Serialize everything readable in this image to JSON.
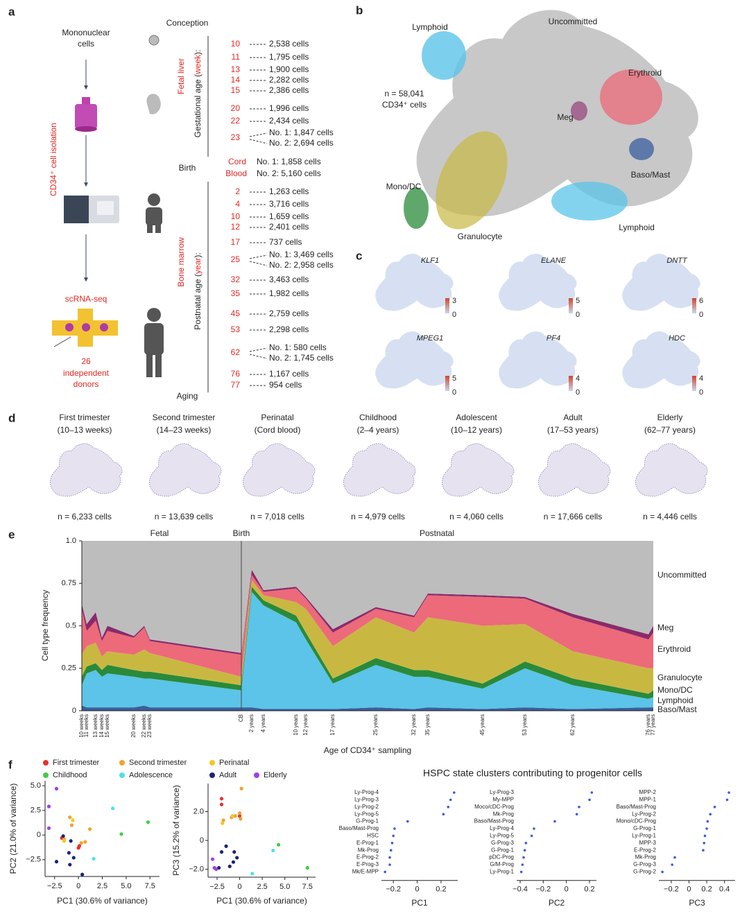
{
  "panel_labels": [
    "a",
    "b",
    "c",
    "d",
    "e",
    "f"
  ],
  "panel_a": {
    "input": [
      "Mononuclear",
      "cells"
    ],
    "isolation": "CD34⁺ cell isolation",
    "method": "scRNA-seq",
    "donors": [
      "26",
      "independent",
      "donors"
    ],
    "timeline": [
      "Conception",
      "Birth",
      "Aging"
    ],
    "fetal": {
      "tissue": "Fetal liver",
      "axis": [
        "Gestational age (",
        "week",
        "):"
      ],
      "rows": [
        {
          "age": "10",
          "cells": [
            "2,538 cells"
          ]
        },
        {
          "age": "11",
          "cells": [
            "1,795 cells"
          ]
        },
        {
          "age": "13",
          "cells": [
            "1,900 cells"
          ]
        },
        {
          "age": "14",
          "cells": [
            "2,282 cells"
          ]
        },
        {
          "age": "15",
          "cells": [
            "2,386 cells"
          ]
        },
        {
          "age": "20",
          "cells": [
            "1,996 cells"
          ]
        },
        {
          "age": "22",
          "cells": [
            "2,434 cells"
          ]
        },
        {
          "age": "23",
          "cells": [
            "No. 1: 1,847 cells",
            "No. 2: 2,694 cells"
          ]
        }
      ]
    },
    "cord": {
      "tissue": [
        "Cord",
        "Blood"
      ],
      "cells": [
        "No. 1: 1,858 cells",
        "No. 2: 5,160 cells"
      ]
    },
    "postnatal": {
      "tissue": "Bone marrow",
      "axis": [
        "Postnatal age (",
        "year",
        "):"
      ],
      "rows": [
        {
          "age": "2",
          "cells": [
            "1,263 cells"
          ]
        },
        {
          "age": "4",
          "cells": [
            "3,716 cells"
          ]
        },
        {
          "age": "10",
          "cells": [
            "1,659 cells"
          ]
        },
        {
          "age": "12",
          "cells": [
            "2,401 cells"
          ]
        },
        {
          "age": "17",
          "cells": [
            "737 cells"
          ]
        },
        {
          "age": "25",
          "cells": [
            "No. 1: 3,469 cells",
            "No. 2: 2,958 cells"
          ]
        },
        {
          "age": "32",
          "cells": [
            "3,463 cells"
          ]
        },
        {
          "age": "35",
          "cells": [
            "1,982 cells"
          ]
        },
        {
          "age": "45",
          "cells": [
            "2,759 cells"
          ]
        },
        {
          "age": "53",
          "cells": [
            "2,298 cells"
          ]
        },
        {
          "age": "62",
          "cells": [
            "No. 1: 580 cells",
            "No. 2: 1,745 cells"
          ]
        },
        {
          "age": "76",
          "cells": [
            "1,167 cells"
          ]
        },
        {
          "age": "77",
          "cells": [
            "954 cells"
          ]
        }
      ]
    }
  },
  "panel_b": {
    "count": [
      "n = 58,041",
      "CD34⁺ cells"
    ],
    "labels": [
      {
        "text": "Lymphoid",
        "color": "#2fb2e0"
      },
      {
        "text": "Uncommitted",
        "color": "#888888"
      },
      {
        "text": "Erythroid",
        "color": "#e0506a"
      },
      {
        "text": "Meg",
        "color": "#a0307a"
      },
      {
        "text": "Baso/Mast",
        "color": "#3a5fa0"
      },
      {
        "text": "Lymphoid",
        "color": "#2fb2e0"
      },
      {
        "text": "Granulocyte",
        "color": "#b0a020"
      },
      {
        "text": "Mono/DC",
        "color": "#2a8a3a"
      }
    ]
  },
  "panel_c": {
    "genes": [
      {
        "name": "KLF1",
        "max": "3",
        "min": "0"
      },
      {
        "name": "ELANE",
        "max": "5",
        "min": "0"
      },
      {
        "name": "DNTT",
        "max": "6",
        "min": "0"
      },
      {
        "name": "MPEG1",
        "max": "5",
        "min": "0"
      },
      {
        "name": "PF4",
        "max": "4",
        "min": "0"
      },
      {
        "name": "HDC",
        "max": "4",
        "min": "0"
      }
    ]
  },
  "panel_d": {
    "groups": [
      {
        "title": [
          "First trimester",
          "(10–13 weeks)"
        ],
        "count": "n = 6,233 cells"
      },
      {
        "title": [
          "Second trimester",
          "(14–23 weeks)"
        ],
        "count": "n = 13,639 cells"
      },
      {
        "title": [
          "Perinatal",
          "(Cord blood)"
        ],
        "count": "n = 7,018 cells"
      },
      {
        "title": [
          "Childhood",
          "(2–4 years)"
        ],
        "count": "n = 4,979 cells"
      },
      {
        "title": [
          "Adolescent",
          "(10–12 years)"
        ],
        "count": "n = 4,060 cells"
      },
      {
        "title": [
          "Adult",
          "(17–53 years)"
        ],
        "count": "n = 17,666 cells"
      },
      {
        "title": [
          "Elderly",
          "(62–77 years)"
        ],
        "count": "n = 4,446 cells"
      }
    ]
  },
  "chart_data": [
    {
      "type": "area",
      "stacked": true,
      "annotations": [
        "Fetal",
        "Birth",
        "Postnatal"
      ],
      "ylabel": "Cell type frequency",
      "xlabel": "Age of CD34⁺ sampling",
      "categories": [
        "10 weeks",
        "11 weeks",
        "13 weeks",
        "14 weeks",
        "15 weeks",
        "20 weeks",
        "22 weeks",
        "23 weeks",
        "CB",
        "2 years",
        "4 years",
        "10 years",
        "12 years",
        "17 years",
        "25 years",
        "32 years",
        "35 years",
        "45 years",
        "53 years",
        "62 years",
        "76 years",
        "77 years"
      ],
      "ylim": [
        0,
        1
      ],
      "yticks": [
        0,
        0.25,
        0.5,
        0.75,
        {
          "value": 1,
          "label": "1.0"
        }
      ],
      "series": [
        {
          "name": "Baso/Mast",
          "color": "#3a5f9a",
          "values": [
            0.03,
            0.02,
            0.02,
            0.02,
            0.02,
            0.02,
            0.03,
            0.02,
            0.02,
            0.02,
            0.01,
            0.01,
            0.01,
            0.01,
            0.02,
            0.01,
            0.02,
            0.01,
            0.02,
            0.01,
            0.02,
            0.02
          ]
        },
        {
          "name": "Lymphoid",
          "color": "#5bc4e8",
          "values": [
            0.12,
            0.2,
            0.22,
            0.18,
            0.2,
            0.18,
            0.16,
            0.17,
            0.1,
            0.68,
            0.61,
            0.51,
            0.41,
            0.15,
            0.25,
            0.19,
            0.18,
            0.12,
            0.23,
            0.14,
            0.05,
            0.06
          ]
        },
        {
          "name": "Mono/DC",
          "color": "#2a8a3a",
          "values": [
            0.05,
            0.04,
            0.04,
            0.04,
            0.05,
            0.04,
            0.04,
            0.04,
            0.03,
            0.03,
            0.03,
            0.04,
            0.04,
            0.03,
            0.04,
            0.04,
            0.04,
            0.03,
            0.04,
            0.04,
            0.03,
            0.04
          ]
        },
        {
          "name": "Granulocyte",
          "color": "#c8b842",
          "values": [
            0.13,
            0.12,
            0.12,
            0.08,
            0.08,
            0.09,
            0.13,
            0.11,
            0.05,
            0.04,
            0.03,
            0.08,
            0.14,
            0.19,
            0.24,
            0.22,
            0.31,
            0.34,
            0.22,
            0.16,
            0.15,
            0.13
          ]
        },
        {
          "name": "Erythroid",
          "color": "#ec6a7a",
          "values": [
            0.27,
            0.09,
            0.13,
            0.09,
            0.12,
            0.1,
            0.13,
            0.07,
            0.13,
            0.03,
            0.02,
            0.08,
            0.06,
            0.08,
            0.05,
            0.09,
            0.13,
            0.17,
            0.15,
            0.2,
            0.17,
            0.21
          ]
        },
        {
          "name": "Meg",
          "color": "#8b2a6a",
          "values": [
            0.03,
            0.04,
            0.05,
            0.02,
            0.03,
            0.01,
            0.01,
            0.01,
            0.01,
            0.03,
            0.01,
            0.01,
            0.01,
            0.02,
            0.01,
            0.01,
            0.01,
            0.01,
            0.01,
            0.02,
            0.03,
            0.04
          ]
        },
        {
          "name": "Uncommitted",
          "color": "#bdbdbd",
          "values": [
            0.37,
            0.49,
            0.42,
            0.57,
            0.5,
            0.56,
            0.5,
            0.58,
            0.66,
            0.17,
            0.29,
            0.27,
            0.33,
            0.52,
            0.39,
            0.44,
            0.31,
            0.32,
            0.33,
            0.43,
            0.55,
            0.5
          ]
        }
      ]
    },
    {
      "type": "scatter",
      "xlabel": "PC1 (30.6% of variance)",
      "ylabel": "PC2 (21.0% of variance)",
      "xlim": [
        -3.5,
        8.5
      ],
      "ylim": [
        -4.2,
        5.5
      ],
      "xticks": [
        {
          "value": -2.5,
          "label": "−2.5"
        },
        0,
        2.5,
        {
          "value": 5,
          "label": "5.0"
        },
        7.5
      ],
      "yticks": [
        {
          "value": -2.5,
          "label": "−2.5"
        },
        0,
        2.5,
        {
          "value": 5,
          "label": "5.0"
        }
      ],
      "series": [
        {
          "name": "First trimester",
          "color": "#e8312a",
          "x": [
            -1.75,
            0,
            0.1
          ],
          "y": [
            -0.3,
            -1.3,
            -1.1
          ]
        },
        {
          "name": "Second trimester",
          "color": "#f5a030",
          "x": [
            -0.9,
            -0.7,
            0.3,
            1.2,
            0.7,
            -1.5
          ],
          "y": [
            1.8,
            1.0,
            -0.8,
            0.6,
            -0.7,
            -0.4
          ]
        },
        {
          "name": "Perinatal",
          "color": "#f2c81e",
          "x": [
            -0.6,
            -1.5
          ],
          "y": [
            1.5,
            -0.6
          ]
        },
        {
          "name": "Childhood",
          "color": "#44cc44",
          "x": [
            4.5,
            7.3
          ],
          "y": [
            0.1,
            1.3
          ]
        },
        {
          "name": "Adolescence",
          "color": "#4de0e8",
          "x": [
            3.6,
            1.6
          ],
          "y": [
            2.7,
            -2.4
          ]
        },
        {
          "name": "Adult",
          "color": "#1a237e",
          "x": [
            -1.6,
            -0.8,
            -1.0,
            -2.3,
            -0.9,
            0.4,
            -0.5
          ],
          "y": [
            -0.1,
            -0.6,
            -1.8,
            -2.7,
            -3.0,
            -4.0,
            -2.3
          ]
        },
        {
          "name": "Elderly",
          "color": "#a040e0",
          "x": [
            -2.3,
            -3.1,
            -3.1
          ],
          "y": [
            4.7,
            2.9,
            0.7
          ]
        }
      ]
    },
    {
      "type": "scatter",
      "xlabel": "PC1 (30.6% of variance)",
      "ylabel": "PC3 (15.2% of variance)",
      "xlim": [
        -3.5,
        8.4
      ],
      "ylim": [
        -2.55,
        3.95
      ],
      "xticks": [
        {
          "value": -2.5,
          "label": "−2.5"
        },
        0,
        2.5,
        {
          "value": 5,
          "label": "5.0"
        },
        7.5
      ],
      "yticks": [
        {
          "value": -2,
          "label": "−2.0"
        },
        0,
        {
          "value": 2,
          "label": "2.0"
        }
      ],
      "series": [
        {
          "color": "#e8312a",
          "x": [
            -2.0,
            -2.0,
            0
          ],
          "y": [
            2.9,
            2.5,
            1.7
          ]
        },
        {
          "color": "#f5a030",
          "x": [
            0.2,
            -0.5,
            -0.9,
            0,
            0.1,
            -1.8
          ],
          "y": [
            3.6,
            1.7,
            1.6,
            1.9,
            1.5,
            1.4
          ]
        },
        {
          "color": "#f2c81e",
          "x": [
            -0.8,
            -1.9
          ],
          "y": [
            1.7,
            1.2
          ]
        },
        {
          "color": "#44cc44",
          "x": [
            4.3,
            7.5
          ],
          "y": [
            -0.3,
            -1.9
          ]
        },
        {
          "color": "#4de0e8",
          "x": [
            3.7,
            1.4
          ],
          "y": [
            -0.7,
            -2.3
          ]
        },
        {
          "color": "#1a237e",
          "x": [
            -2.0,
            -0.6,
            -1.1,
            -2.3,
            -0.7,
            -0.3,
            -1.5
          ],
          "y": [
            -0.8,
            -0.8,
            -1.8,
            -1.9,
            -1.5,
            -1.2,
            -0.4
          ]
        },
        {
          "color": "#a040e0",
          "x": [
            -2.6,
            -3.0,
            -2.8
          ],
          "y": [
            -2.0,
            -1.3,
            -1.9
          ]
        }
      ]
    },
    {
      "type": "dot",
      "title": "HSPC state clusters contributing to progenitor cells",
      "xlabel": "PC1",
      "color": "#3b5bdb",
      "categories": [
        "Ly-Prog-4",
        "Ly-Prog-3",
        "Ly-Prog-2",
        "Ly-Prog-5",
        "G-Prog-1",
        "Baso/Mast-Prog",
        "HSC",
        "E-Prog-1",
        "Mk-Prog",
        "E-Prog-2",
        "E-Prog-3",
        "Mk/E-MPP"
      ],
      "values": [
        0.31,
        0.28,
        0.26,
        0.22,
        -0.08,
        -0.19,
        -0.2,
        -0.21,
        -0.22,
        -0.23,
        -0.23,
        -0.27
      ],
      "xlim": [
        -0.3,
        0.34
      ],
      "xticks": [
        {
          "value": -0.2,
          "label": "−0.2"
        },
        0,
        0.2
      ]
    },
    {
      "type": "dot",
      "xlabel": "PC2",
      "color": "#3b5bdb",
      "categories": [
        "Ly-Prog-3",
        "My-MPP",
        "Moco/cDC-Prog",
        "Mk-Prog",
        "Baso/Mast-Prog",
        "Ly-Prog-4",
        "Ly-Prog-5",
        "G-Prog-3",
        "G-Prog-1",
        "pDC-Prog",
        "G/M-Prog",
        "Ly-Prog-1"
      ],
      "values": [
        0.22,
        0.2,
        0.11,
        0.09,
        -0.1,
        -0.28,
        -0.3,
        -0.35,
        -0.36,
        -0.37,
        -0.38,
        -0.39
      ],
      "xlim": [
        -0.43,
        0.26
      ],
      "xticks": [
        {
          "value": -0.4,
          "label": "−0.4"
        },
        {
          "value": -0.2,
          "label": "−0.2"
        },
        0,
        0.2
      ]
    },
    {
      "type": "dot",
      "xlabel": "PC3",
      "color": "#3b5bdb",
      "categories": [
        "MPP-2",
        "MPP-1",
        "Baso/Mast-Prog",
        "Ly-Prog-2",
        "Mono/cDC-Prog",
        "G-Prog-1",
        "Ly-Prog-1",
        "MPP-3",
        "E-Prog-2",
        "Mk-Prog",
        "G-Prog-3",
        "G-Prog-2"
      ],
      "values": [
        0.45,
        0.43,
        0.29,
        0.24,
        0.21,
        0.2,
        0.18,
        0.17,
        0.16,
        -0.16,
        -0.19,
        -0.3
      ],
      "xlim": [
        -0.34,
        0.52
      ],
      "xticks": [
        {
          "value": -0.2,
          "label": "−0.2"
        },
        0,
        0.2,
        0.4
      ]
    }
  ]
}
